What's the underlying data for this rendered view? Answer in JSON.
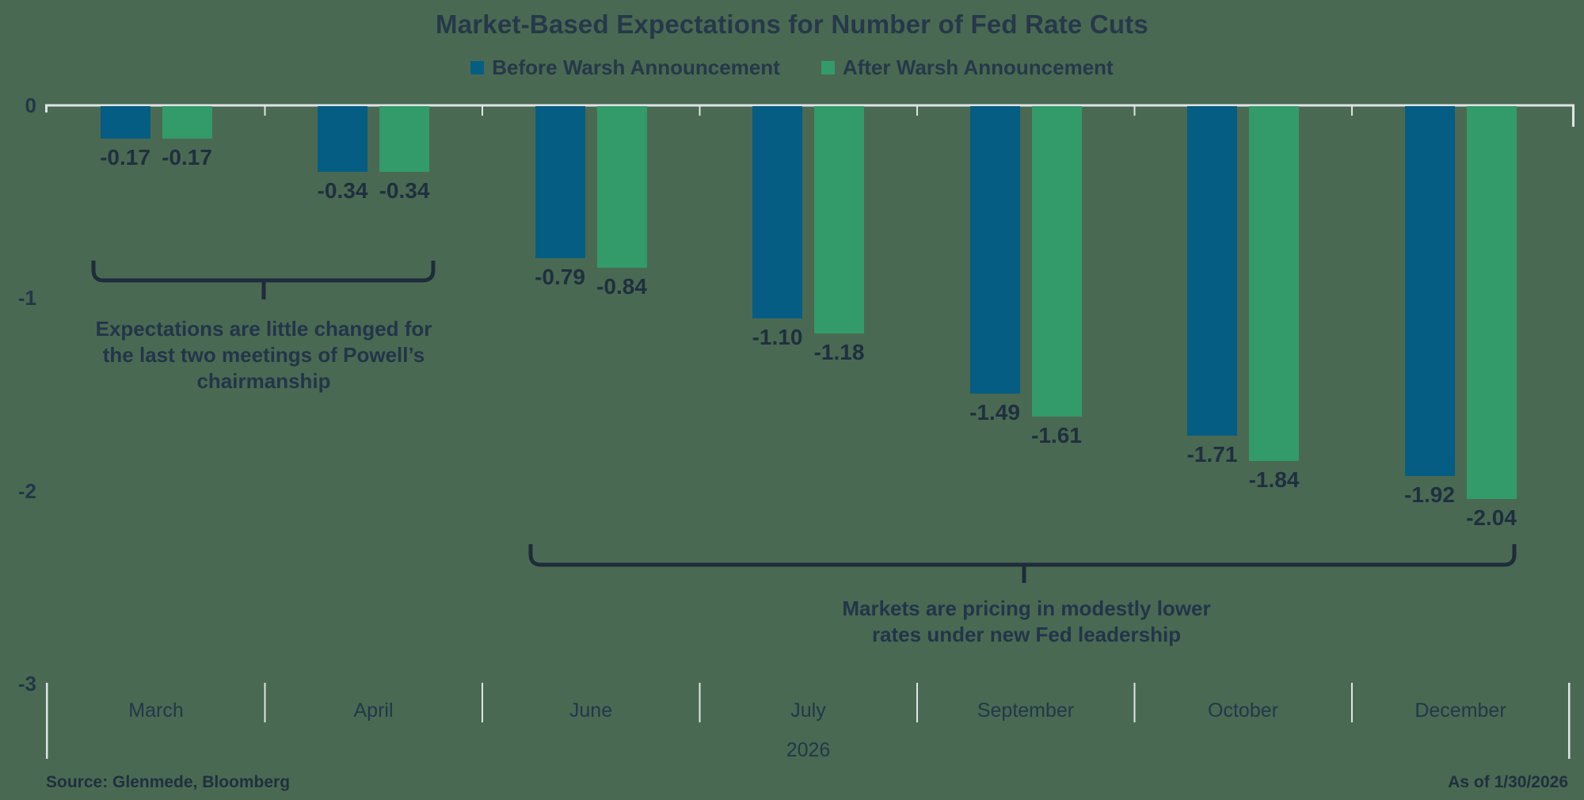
{
  "title": "Market-Based Expectations for Number of Fed Rate Cuts",
  "chart_data": {
    "type": "bar",
    "title": "Market-Based Expectations for Number of Fed Rate Cuts",
    "categories": [
      "March",
      "April",
      "June",
      "July",
      "September",
      "October",
      "December"
    ],
    "x_axis_year_label": "2026",
    "series": [
      {
        "name": "Before Warsh Announcement",
        "color": "#065D83",
        "values": [
          -0.17,
          -0.34,
          -0.79,
          -1.1,
          -1.49,
          -1.71,
          -1.92
        ],
        "labels": [
          "-0.17",
          "-0.34",
          "-0.79",
          "-1.10",
          "-1.49",
          "-1.71",
          "-1.92"
        ]
      },
      {
        "name": "After Warsh Announcement",
        "color": "#339B69",
        "values": [
          -0.17,
          -0.34,
          -0.84,
          -1.18,
          -1.61,
          -1.84,
          -2.04
        ],
        "labels": [
          "-0.17",
          "-0.34",
          "-0.84",
          "-1.18",
          "-1.61",
          "-1.84",
          "-2.04"
        ]
      }
    ],
    "y_axis": {
      "ticks": [
        0,
        -1,
        -2,
        -3
      ],
      "tick_labels": [
        "0",
        "-1",
        "-2",
        "-3"
      ],
      "ylim": [
        -3,
        0
      ]
    },
    "grid": "off",
    "legend_position": "top",
    "annotations": [
      {
        "text": "Expectations are little changed for\nthe last two meetings of Powell’s\nchairmanship",
        "brace_over": [
          "March",
          "April"
        ]
      },
      {
        "text": "Markets are pricing in modestly lower\nrates under new Fed leadership",
        "brace_over": [
          "June",
          "December"
        ]
      }
    ]
  },
  "footer": {
    "source": "Source: Glenmede, Bloomberg",
    "as_of": "As of 1/30/2026"
  },
  "colors": {
    "background": "#4A6952",
    "axis_line": "#DFE4E8",
    "brace": "#1F2C3B",
    "text_dark": "#22354A"
  }
}
